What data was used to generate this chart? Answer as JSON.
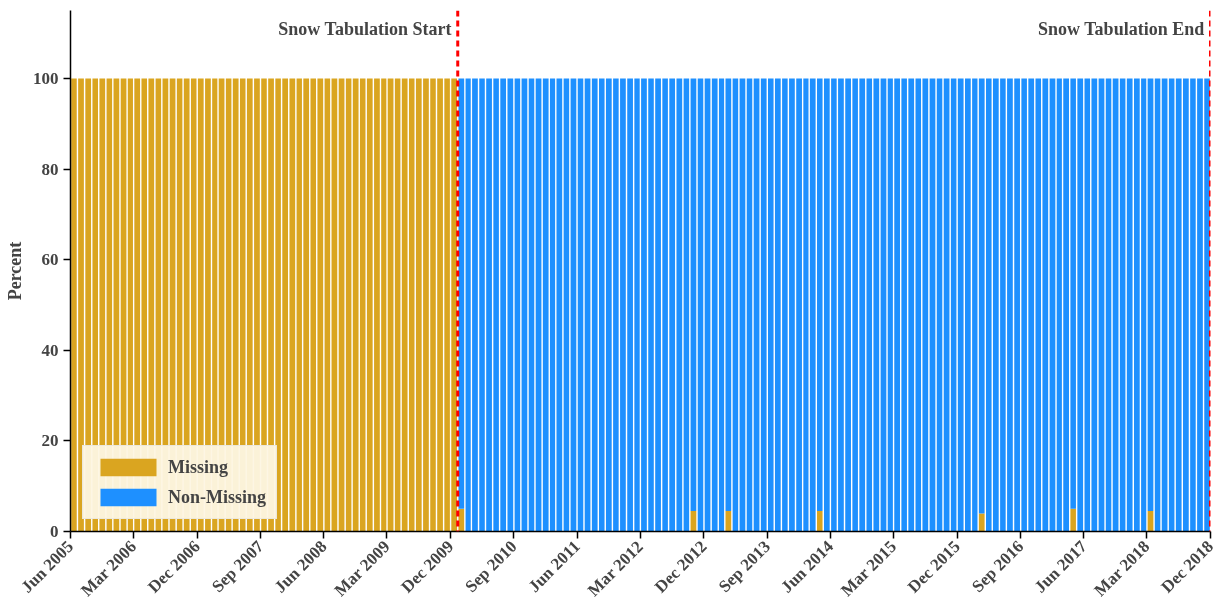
{
  "chart_data": {
    "type": "bar",
    "stacked": true,
    "ylabel": "Percent",
    "x": [
      "2005-06",
      "2005-07",
      "2005-08",
      "2005-09",
      "2005-10",
      "2005-11",
      "2005-12",
      "2006-01",
      "2006-02",
      "2006-03",
      "2006-04",
      "2006-05",
      "2006-06",
      "2006-07",
      "2006-08",
      "2006-09",
      "2006-10",
      "2006-11",
      "2006-12",
      "2007-01",
      "2007-02",
      "2007-03",
      "2007-04",
      "2007-05",
      "2007-06",
      "2007-07",
      "2007-08",
      "2007-09",
      "2007-10",
      "2007-11",
      "2007-12",
      "2008-01",
      "2008-02",
      "2008-03",
      "2008-04",
      "2008-05",
      "2008-06",
      "2008-07",
      "2008-08",
      "2008-09",
      "2008-10",
      "2008-11",
      "2008-12",
      "2009-01",
      "2009-02",
      "2009-03",
      "2009-04",
      "2009-05",
      "2009-06",
      "2009-07",
      "2009-08",
      "2009-09",
      "2009-10",
      "2009-11",
      "2009-12",
      "2010-01",
      "2010-02",
      "2010-03",
      "2010-04",
      "2010-05",
      "2010-06",
      "2010-07",
      "2010-08",
      "2010-09",
      "2010-10",
      "2010-11",
      "2010-12",
      "2011-01",
      "2011-02",
      "2011-03",
      "2011-04",
      "2011-05",
      "2011-06",
      "2011-07",
      "2011-08",
      "2011-09",
      "2011-10",
      "2011-11",
      "2011-12",
      "2012-01",
      "2012-02",
      "2012-03",
      "2012-04",
      "2012-05",
      "2012-06",
      "2012-07",
      "2012-08",
      "2012-09",
      "2012-10",
      "2012-11",
      "2012-12",
      "2013-01",
      "2013-02",
      "2013-03",
      "2013-04",
      "2013-05",
      "2013-06",
      "2013-07",
      "2013-08",
      "2013-09",
      "2013-10",
      "2013-11",
      "2013-12",
      "2014-01",
      "2014-02",
      "2014-03",
      "2014-04",
      "2014-05",
      "2014-06",
      "2014-07",
      "2014-08",
      "2014-09",
      "2014-10",
      "2014-11",
      "2014-12",
      "2015-01",
      "2015-02",
      "2015-03",
      "2015-04",
      "2015-05",
      "2015-06",
      "2015-07",
      "2015-08",
      "2015-09",
      "2015-10",
      "2015-11",
      "2015-12",
      "2016-01",
      "2016-02",
      "2016-03",
      "2016-04",
      "2016-05",
      "2016-06",
      "2016-07",
      "2016-08",
      "2016-09",
      "2016-10",
      "2016-11",
      "2016-12",
      "2017-01",
      "2017-02",
      "2017-03",
      "2017-04",
      "2017-05",
      "2017-06",
      "2017-07",
      "2017-08",
      "2017-09",
      "2017-10",
      "2017-11",
      "2017-12",
      "2018-01",
      "2018-02",
      "2018-03",
      "2018-04",
      "2018-05",
      "2018-06",
      "2018-07",
      "2018-08",
      "2018-09",
      "2018-10",
      "2018-11"
    ],
    "series": [
      {
        "name": "Missing",
        "color": "#daa520",
        "values": [
          100,
          100,
          100,
          100,
          100,
          100,
          100,
          100,
          100,
          100,
          100,
          100,
          100,
          100,
          100,
          100,
          100,
          100,
          100,
          100,
          100,
          100,
          100,
          100,
          100,
          100,
          100,
          100,
          100,
          100,
          100,
          100,
          100,
          100,
          100,
          100,
          100,
          100,
          100,
          100,
          100,
          100,
          100,
          100,
          100,
          100,
          100,
          100,
          100,
          100,
          100,
          100,
          100,
          100,
          100,
          5,
          0,
          0,
          0,
          0,
          0,
          0,
          0,
          0,
          0,
          0,
          0,
          0,
          0,
          0,
          0,
          0,
          0,
          0,
          0,
          0,
          0,
          0,
          0,
          0,
          0,
          0,
          0,
          0,
          0,
          0,
          0,
          0,
          4.5,
          0,
          0,
          0,
          0,
          4.5,
          0,
          0,
          0,
          0,
          0,
          0,
          0,
          0,
          0,
          0,
          0,
          0,
          4.5,
          0,
          0,
          0,
          0,
          0,
          0,
          0,
          0,
          0,
          0,
          0,
          0,
          0,
          0,
          0,
          0,
          0,
          0,
          0,
          0,
          0,
          0,
          4,
          0,
          0,
          0,
          0,
          0,
          0,
          0,
          0,
          0,
          0,
          0,
          0,
          5,
          0,
          0,
          0,
          0,
          0,
          0,
          0,
          0,
          0,
          0,
          4.5,
          0,
          0,
          0,
          0,
          0,
          0,
          0,
          0
        ]
      },
      {
        "name": "Non-Missing",
        "color": "#1e90ff",
        "values": [
          0,
          0,
          0,
          0,
          0,
          0,
          0,
          0,
          0,
          0,
          0,
          0,
          0,
          0,
          0,
          0,
          0,
          0,
          0,
          0,
          0,
          0,
          0,
          0,
          0,
          0,
          0,
          0,
          0,
          0,
          0,
          0,
          0,
          0,
          0,
          0,
          0,
          0,
          0,
          0,
          0,
          0,
          0,
          0,
          0,
          0,
          0,
          0,
          0,
          0,
          0,
          0,
          0,
          0,
          0,
          95,
          100,
          100,
          100,
          100,
          100,
          100,
          100,
          100,
          100,
          100,
          100,
          100,
          100,
          100,
          100,
          100,
          100,
          100,
          100,
          100,
          100,
          100,
          100,
          100,
          100,
          100,
          100,
          100,
          100,
          100,
          100,
          100,
          95.5,
          100,
          100,
          100,
          100,
          95.5,
          100,
          100,
          100,
          100,
          100,
          100,
          100,
          100,
          100,
          100,
          100,
          100,
          95.5,
          100,
          100,
          100,
          100,
          100,
          100,
          100,
          100,
          100,
          100,
          100,
          100,
          100,
          100,
          100,
          100,
          100,
          100,
          100,
          100,
          100,
          100,
          96,
          100,
          100,
          100,
          100,
          100,
          100,
          100,
          100,
          100,
          100,
          100,
          100,
          95,
          100,
          100,
          100,
          100,
          100,
          100,
          100,
          100,
          100,
          100,
          95.5,
          100,
          100,
          100,
          100,
          100,
          100,
          100,
          100
        ]
      }
    ],
    "xlim": [
      "2005-06",
      "2018-12"
    ],
    "xticks": [
      {
        "value": "2005-06",
        "label": "Jun 2005"
      },
      {
        "value": "2006-03",
        "label": "Mar 2006"
      },
      {
        "value": "2006-12",
        "label": "Dec 2006"
      },
      {
        "value": "2007-09",
        "label": "Sep 2007"
      },
      {
        "value": "2008-06",
        "label": "Jun 2008"
      },
      {
        "value": "2009-03",
        "label": "Mar 2009"
      },
      {
        "value": "2009-12",
        "label": "Dec 2009"
      },
      {
        "value": "2010-09",
        "label": "Sep 2010"
      },
      {
        "value": "2011-06",
        "label": "Jun 2011"
      },
      {
        "value": "2012-03",
        "label": "Mar 2012"
      },
      {
        "value": "2012-12",
        "label": "Dec 2012"
      },
      {
        "value": "2013-09",
        "label": "Sep 2013"
      },
      {
        "value": "2014-06",
        "label": "Jun 2014"
      },
      {
        "value": "2015-03",
        "label": "Mar 2015"
      },
      {
        "value": "2015-12",
        "label": "Dec 2015"
      },
      {
        "value": "2016-09",
        "label": "Sep 2016"
      },
      {
        "value": "2017-06",
        "label": "Jun 2017"
      },
      {
        "value": "2018-03",
        "label": "Mar 2018"
      },
      {
        "value": "2018-12",
        "label": "Dec 2018"
      }
    ],
    "ylim": [
      0,
      115
    ],
    "yticks": [
      0,
      20,
      40,
      60,
      80,
      100
    ],
    "ref_lines": [
      {
        "axis": "x",
        "value": "2010-01",
        "label": "Snow Tabulation Start",
        "color": "#ff0000",
        "line_style": "dashed"
      },
      {
        "axis": "x",
        "value": "2018-12",
        "label": "Snow Tabulation End",
        "color": "#ff0000",
        "line_style": "dashed"
      }
    ],
    "grid": false,
    "legend": "bottom left"
  }
}
